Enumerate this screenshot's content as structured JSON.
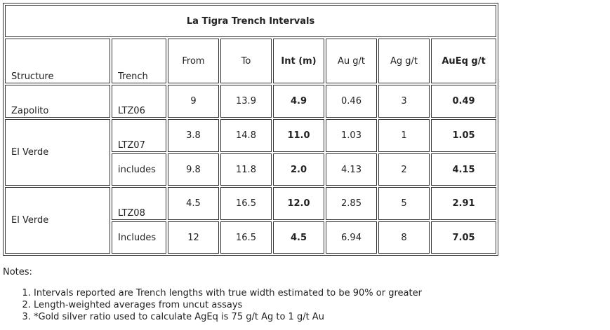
{
  "table": {
    "title": "La Tigra Trench Intervals",
    "headers": [
      "Structure",
      "Trench",
      "From",
      "To",
      "Int (m)",
      "Au g/t",
      "Ag g/t",
      "AuEq g/t"
    ],
    "groups": [
      {
        "structure": "Zapolito",
        "rows": [
          {
            "trench": "LTZ06",
            "cells": [
              "9",
              "13.9",
              "4.9",
              "0.46",
              "3",
              "0.49"
            ]
          }
        ]
      },
      {
        "structure": "El Verde",
        "rows": [
          {
            "trench": "LTZ07",
            "cells": [
              "3.8",
              "14.8",
              "11.0",
              "1.03",
              "1",
              "1.05"
            ]
          },
          {
            "trench": "includes",
            "cells": [
              "9.8",
              "11.8",
              "2.0",
              "4.13",
              "2",
              "4.15"
            ]
          }
        ]
      },
      {
        "structure": "El Verde",
        "rows": [
          {
            "trench": "LTZ08",
            "cells": [
              "4.5",
              "16.5",
              "12.0",
              "2.85",
              "5",
              "2.91"
            ]
          },
          {
            "trench": "Includes",
            "cells": [
              "12",
              "16.5",
              "4.5",
              "6.94",
              "8",
              "7.05"
            ]
          }
        ]
      }
    ]
  },
  "notes": {
    "label": "Notes:",
    "items": [
      "Intervals reported are Trench lengths with true width estimated to be 90% or greater",
      "Length-weighted averages from uncut assays",
      "*Gold silver ratio used to calculate AgEq is 75 g/t Ag to 1 g/t Au"
    ]
  }
}
